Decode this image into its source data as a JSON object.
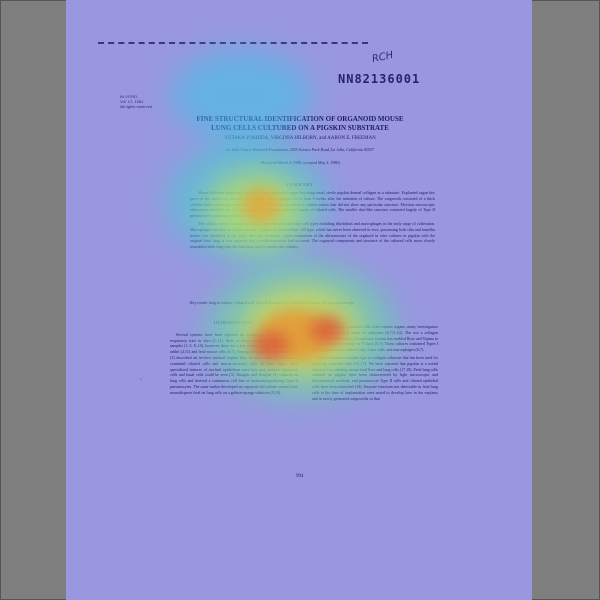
{
  "document": {
    "handwritten_note": "RCH",
    "accession_number": "NN82136001",
    "pub_info": [
      "IN VITRO",
      "Vol. 17, 1981",
      "All rights reserved"
    ],
    "title_lines": [
      "FINE STRUCTURAL IDENTIFICATION OF ORGANOID MOUSE",
      "LUNG CELLS CULTURED ON A PIGSKIN SUBSTRATE"
    ],
    "authors": "YUTAKA YOSHIDA, VIRGINIA HILBORN, and AARON E. FREEMAN",
    "institution": "La Jolla Cancer Research Foundation, 2945 Science Park Road, La Jolla, California 92037",
    "dates": "(Received March 4, 1980; accepted May 2, 1980)",
    "summary_heading": "SUMMARY",
    "summary_paragraphs": [
      "Mouse full-term embryonic lung tissue was cultured as organ bits using dead, sterile pigskin dermal collagen as a substrate. Explanted organ bits grew on the surface of, and into, the pigskin dermal collagen for at least 9 weeks after the initiation of culture. The outgrowth consisted of a thick cellular sheet containing various sizes of duct-like structures within a cellular matrix that did not show any particular structure. Electron microscopic observation revealed that the larger duct-like structures consisted largely of ciliated cells. The smaller duct-like structure consisted largely of Type II pneumocytes containing lamellar bodies.",
      "The cellular matrix consisted of Type II pneumocytes and other cell types including fibroblasts and macrophages in the early stage of cultivation. Macrophages invaded the pigskin dermal collagen. An intermediate cell type, which has never been observed in vivo, possessing both cilia and lamellar bodies was identified in the larger duct-like structures. Upon comparison of the ultrastructure of the organoid in vitro cultures in pigskin with the original fetal lung, it was apparent that cytodifferentiation had occurred. The organoid components and structure of the cultured cells more closely resembled adult lung than the fetal lung used to initiate the cultures."
    ],
    "keywords": "Key words: lung in culture; ciliated cell; Type II pneumocyte; cytodifferentiation; electron microscopy.",
    "intro_heading": "INTRODUCTION",
    "col1_text": "Several systems have been reported for culturing cells comprising the respiratory tract in vitro (1–11). Most of these studies used rat and human samples (1–5, 8–10), however, there are a few reports on the culturing of fetal rabbit (2,11) and fetal mouse cells (6,7). Among these reports, Heckman et al. (3) described an in-vitro tracheal explant that, in early stages of cultivation, contained ciliated cells and mucus-secretory cells. In later stages, three specialized features of tracheal epithelium were lost, and, instead, squamous cells and basal cells could be seen (3). Douglas and Knights (8) cultured rat lung cells and derived a continuous cell line of surfactant-producing Type II pneumocytes. The same author developed an organoid cell culture system from monodisperse fetal rat lung cells on a gelatin-sponge substrate (9,10).",
    "col2_paragraphs": [
      "In order to grow epithelial cells from various organs, many investigators have applied different kinds of substrates (6,7,9–14). The use a collagen substrate in a dual-rotary circumfusion system has enabled Rose and Yajima to cultivate fetal mouse lung for 75 days (6,7). These cultures contained Types I and II pneumocytes, ciliated cells, Clara cells, and macrophages (6,7).",
      "Pigskin dermis is another type of collagen substrate that has been used for culturing epithelial cells (15–17). We have reported that pigskin is a useful substrate for culturing mouse fetal liver and lung cells (17,18). Fetal lung cells cultured on pigskin have been characterized by light microscopic and histochemical methods, and pneumocyte Type II cells and ciliated epithelial cells have been identified (18). Enzyme functions not detectable in fetal lung cells at the time of implantation were noted to develop later in the explants and in newly generated outgrowths so that"
    ],
    "page_number": "994",
    "margin_mark": "·"
  }
}
